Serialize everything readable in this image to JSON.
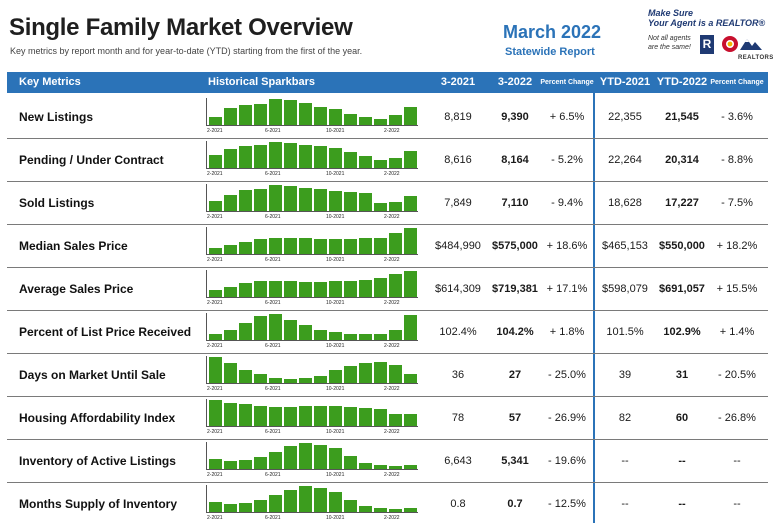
{
  "header": {
    "title": "Single Family Market Overview",
    "subtitle": "Key metrics by report month and for year-to-date (YTD) starting from the first of the year.",
    "period": "March 2022",
    "report_type": "Statewide Report"
  },
  "brand": {
    "line1": "Make Sure",
    "line2": "Your Agent is a REALTOR®",
    "note1": "Not all agents",
    "note2": "are the same!",
    "r_mark": "R",
    "caption": "REALTORS"
  },
  "columns": {
    "metric": "Key Metrics",
    "sparkbars": "Historical Sparkbars",
    "period1": "3-2021",
    "period2": "3-2022",
    "pct_change": "Percent Change",
    "ytd1": "YTD-2021",
    "ytd2": "YTD-2022",
    "ytd_pct_change": "Percent Change"
  },
  "spark_ticks": [
    "2-2021",
    "6-2021",
    "10-2021",
    "2-2022"
  ],
  "rows": [
    {
      "label": "New Listings",
      "p1": "8,819",
      "p2": "9,390",
      "pc": "+ 6.5%",
      "y1": "22,355",
      "y2": "21,545",
      "ypc": "- 3.6%",
      "bars": [
        0.3,
        0.65,
        0.78,
        0.8,
        1.0,
        0.95,
        0.85,
        0.68,
        0.62,
        0.42,
        0.3,
        0.22,
        0.4,
        0.68
      ]
    },
    {
      "label": "Pending / Under Contract",
      "p1": "8,616",
      "p2": "8,164",
      "pc": "- 5.2%",
      "y1": "22,264",
      "y2": "20,314",
      "ypc": "- 8.8%",
      "bars": [
        0.5,
        0.72,
        0.86,
        0.9,
        1.0,
        0.98,
        0.9,
        0.86,
        0.78,
        0.62,
        0.48,
        0.32,
        0.4,
        0.64
      ]
    },
    {
      "label": "Sold Listings",
      "p1": "7,849",
      "p2": "7,110",
      "pc": "- 9.4%",
      "y1": "18,628",
      "y2": "17,227",
      "ypc": "- 7.5%",
      "bars": [
        0.4,
        0.62,
        0.8,
        0.84,
        1.0,
        0.96,
        0.9,
        0.86,
        0.78,
        0.72,
        0.7,
        0.3,
        0.36,
        0.58
      ]
    },
    {
      "label": "Median Sales Price",
      "p1": "$484,990",
      "p2": "$575,000",
      "pc": "+ 18.6%",
      "y1": "$465,153",
      "y2": "$550,000",
      "ypc": "+ 18.2%",
      "bars": [
        0.24,
        0.36,
        0.48,
        0.58,
        0.62,
        0.62,
        0.6,
        0.58,
        0.56,
        0.57,
        0.6,
        0.62,
        0.82,
        1.0
      ]
    },
    {
      "label": "Average Sales Price",
      "p1": "$614,309",
      "p2": "$719,381",
      "pc": "+ 17.1%",
      "y1": "$598,079",
      "y2": "$691,057",
      "ypc": "+ 15.5%",
      "bars": [
        0.28,
        0.4,
        0.52,
        0.62,
        0.62,
        0.6,
        0.58,
        0.58,
        0.6,
        0.63,
        0.66,
        0.72,
        0.9,
        1.0
      ]
    },
    {
      "label": "Percent of List Price Received",
      "p1": "102.4%",
      "p2": "104.2%",
      "pc": "+ 1.8%",
      "y1": "101.5%",
      "y2": "102.9%",
      "ypc": "+ 1.4%",
      "bars": [
        0.24,
        0.4,
        0.64,
        0.92,
        1.0,
        0.78,
        0.56,
        0.4,
        0.3,
        0.24,
        0.22,
        0.24,
        0.4,
        0.96
      ]
    },
    {
      "label": "Days on Market Until Sale",
      "p1": "36",
      "p2": "27",
      "pc": "- 25.0%",
      "y1": "39",
      "y2": "31",
      "ypc": "- 20.5%",
      "bars": [
        1.0,
        0.78,
        0.5,
        0.34,
        0.2,
        0.14,
        0.18,
        0.28,
        0.5,
        0.66,
        0.78,
        0.8,
        0.7,
        0.36
      ]
    },
    {
      "label": "Housing Affordability Index",
      "p1": "78",
      "p2": "57",
      "pc": "- 26.9%",
      "y1": "82",
      "y2": "60",
      "ypc": "- 26.8%",
      "bars": [
        1.0,
        0.9,
        0.84,
        0.78,
        0.74,
        0.74,
        0.76,
        0.78,
        0.78,
        0.74,
        0.7,
        0.64,
        0.48,
        0.46
      ]
    },
    {
      "label": "Inventory of Active Listings",
      "p1": "6,643",
      "p2": "5,341",
      "pc": "- 19.6%",
      "y1": "--",
      "y2": "--",
      "ypc": "--",
      "bars": [
        0.4,
        0.3,
        0.34,
        0.46,
        0.64,
        0.88,
        1.0,
        0.94,
        0.8,
        0.5,
        0.22,
        0.14,
        0.12,
        0.14
      ]
    },
    {
      "label": "Months Supply of Inventory",
      "p1": "0.8",
      "p2": "0.7",
      "pc": "- 12.5%",
      "y1": "--",
      "y2": "--",
      "ypc": "--",
      "bars": [
        0.4,
        0.32,
        0.34,
        0.46,
        0.64,
        0.86,
        1.0,
        0.92,
        0.78,
        0.48,
        0.22,
        0.14,
        0.12,
        0.14
      ]
    }
  ]
}
